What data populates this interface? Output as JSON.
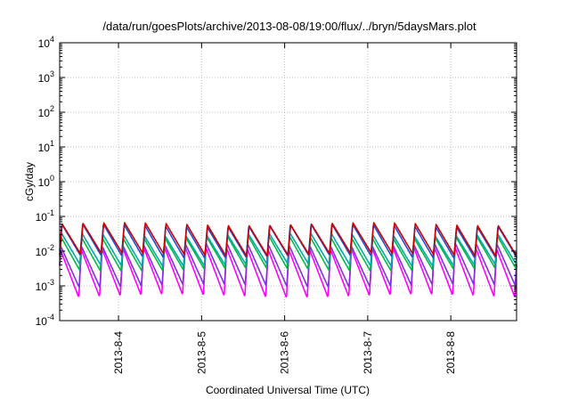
{
  "chart_data": {
    "type": "line",
    "title": "/data/run/goesPlots/archive/2013-08-08/19:00/flux/../bryn/5daysMars.plot",
    "xlabel": "Coordinated Universal Time (UTC)",
    "ylabel": "cGy/day",
    "y_scale": "log",
    "ylim": [
      0.0001,
      10000
    ],
    "y_ticks": [
      {
        "base": "10",
        "exp": "-4"
      },
      {
        "base": "10",
        "exp": "-3"
      },
      {
        "base": "10",
        "exp": "-2"
      },
      {
        "base": "10",
        "exp": "-1"
      },
      {
        "base": "10",
        "exp": "0"
      },
      {
        "base": "10",
        "exp": "1"
      },
      {
        "base": "10",
        "exp": "2"
      },
      {
        "base": "10",
        "exp": "3"
      },
      {
        "base": "10",
        "exp": "4"
      }
    ],
    "x_range_days": [
      "2013-08-03 07:00",
      "2013-08-08 19:00"
    ],
    "x_ticks": [
      "2013-8-4",
      "2013-8-5",
      "2013-8-6",
      "2013-8-7",
      "2013-8-8"
    ],
    "grid": true,
    "legend": "none",
    "pattern": {
      "description_units": "orbital sawtooth, period ~0.25 day",
      "period_days": 0.25
    },
    "series": [
      {
        "color": "#cc0000",
        "peak": 0.06,
        "trough": 0.008
      },
      {
        "color": "#1f4fd6",
        "peak": 0.055,
        "trough": 0.007
      },
      {
        "color": "#00aaaa",
        "peak": 0.03,
        "trough": 0.004
      },
      {
        "color": "#00bb44",
        "peak": 0.025,
        "trough": 0.003
      },
      {
        "color": "#8a2be2",
        "peak": 0.015,
        "trough": 0.001
      },
      {
        "color": "#ff00ff",
        "peak": 0.012,
        "trough": 0.0005
      }
    ],
    "colors": {
      "grid": "#bdbdbd",
      "axis": "#000000"
    }
  }
}
